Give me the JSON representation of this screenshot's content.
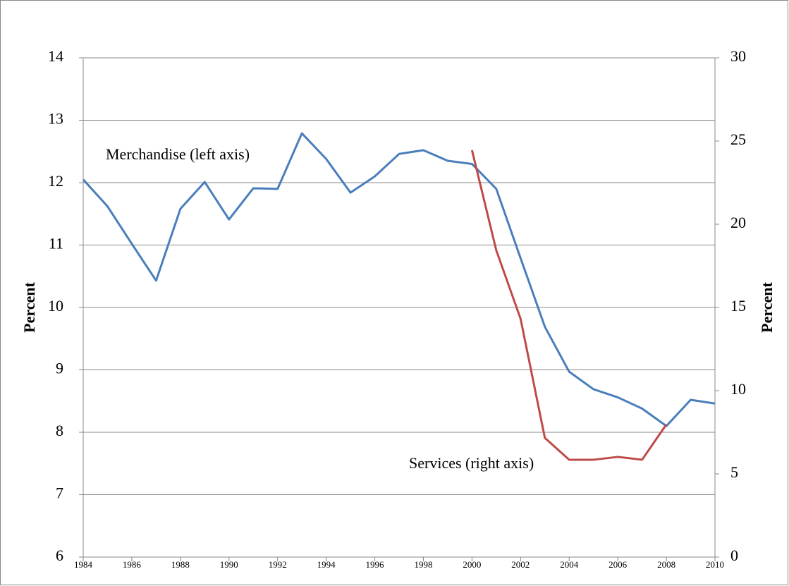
{
  "chart_data": {
    "type": "line",
    "x": [
      1984,
      1985,
      1986,
      1987,
      1988,
      1989,
      1990,
      1991,
      1992,
      1993,
      1994,
      1995,
      1996,
      1997,
      1998,
      1999,
      2000,
      2001,
      2002,
      2003,
      2004,
      2005,
      2006,
      2007,
      2008,
      2009,
      2010
    ],
    "series": [
      {
        "name": "Merchandise (left axis)",
        "color": "#4a7ebb",
        "values": [
          12.05,
          11.62,
          11.02,
          10.43,
          11.58,
          12.01,
          11.41,
          11.91,
          11.9,
          12.79,
          12.38,
          11.84,
          12.1,
          12.46,
          12.52,
          12.35,
          12.3,
          11.9,
          10.79,
          9.69,
          8.97,
          8.69,
          8.56,
          8.38,
          8.1,
          8.52,
          8.46
        ]
      },
      {
        "name": "Services (right axis)",
        "color": "#be4b48",
        "axis": "y2",
        "values": [
          null,
          null,
          null,
          null,
          null,
          null,
          null,
          null,
          null,
          null,
          null,
          null,
          null,
          null,
          null,
          null,
          24.45,
          18.43,
          14.32,
          7.16,
          5.85,
          5.85,
          6.02,
          5.85,
          7.97,
          null,
          null
        ]
      }
    ],
    "xlim": [
      1984,
      2010
    ],
    "xticks": [
      1984,
      1986,
      1988,
      1990,
      1992,
      1994,
      1996,
      1998,
      2000,
      2002,
      2004,
      2006,
      2008,
      2010
    ],
    "ylim": [
      6,
      14
    ],
    "yticks": [
      6,
      7,
      8,
      9,
      10,
      11,
      12,
      13,
      14
    ],
    "y2lim": [
      0,
      30
    ],
    "y2ticks": [
      0,
      5,
      10,
      15,
      20,
      25,
      30
    ],
    "ylabel": "Percent",
    "y2label": "Percent",
    "grid": true
  }
}
